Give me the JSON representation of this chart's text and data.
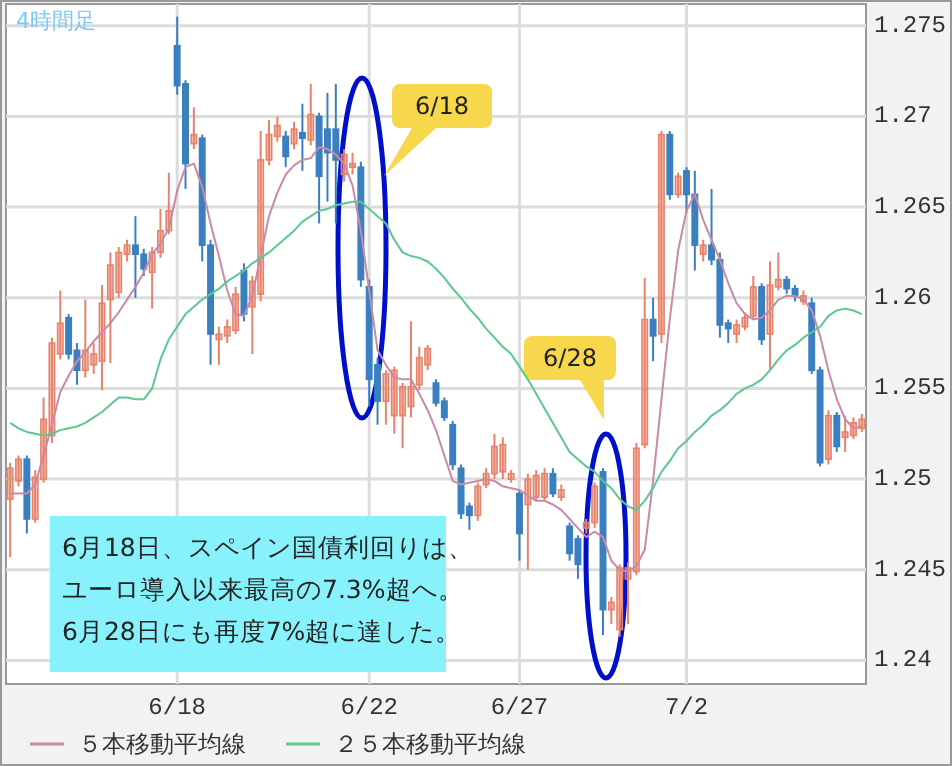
{
  "chart_data": {
    "type": "candlestick",
    "subtitle": "4時間足",
    "categories": [
      null,
      null,
      null,
      null,
      null,
      null,
      null,
      null,
      null,
      null,
      null,
      null,
      null,
      null,
      null,
      null,
      null,
      null,
      null,
      null,
      "6/18",
      null,
      null,
      null,
      null,
      null,
      null,
      null,
      null,
      null,
      null,
      null,
      null,
      null,
      null,
      null,
      null,
      null,
      null,
      null,
      null,
      null,
      null,
      "6/22",
      null,
      null,
      null,
      null,
      null,
      null,
      null,
      null,
      null,
      null,
      null,
      null,
      null,
      null,
      null,
      null,
      null,
      "6/27",
      null,
      null,
      null,
      null,
      null,
      null,
      null,
      null,
      null,
      null,
      null,
      null,
      null,
      null,
      null,
      null,
      null,
      null,
      null,
      "7/2",
      null,
      null,
      null,
      null,
      null,
      null,
      null,
      null,
      null,
      null,
      null,
      null,
      null,
      null,
      null,
      null,
      null,
      null,
      null,
      null,
      null
    ],
    "ohlc": [
      [
        1.2489,
        1.2509,
        1.2457,
        1.2506
      ],
      [
        1.2499,
        1.2513,
        1.2496,
        1.2511
      ],
      [
        1.2511,
        1.2513,
        1.247,
        1.2478
      ],
      [
        1.2478,
        1.2505,
        1.2476,
        1.2501
      ],
      [
        1.25,
        1.2545,
        1.2498,
        1.2533
      ],
      [
        1.2524,
        1.2578,
        1.252,
        1.2575
      ],
      [
        1.2569,
        1.2604,
        1.2566,
        1.2586
      ],
      [
        1.2589,
        1.2591,
        1.2566,
        1.2569
      ],
      [
        1.2571,
        1.2575,
        1.2552,
        1.256
      ],
      [
        1.256,
        1.2599,
        1.2556,
        1.2571
      ],
      [
        1.2563,
        1.2575,
        1.2558,
        1.2569
      ],
      [
        1.2565,
        1.2607,
        1.2549,
        1.2597
      ],
      [
        1.2599,
        1.2625,
        1.2564,
        1.2618
      ],
      [
        1.2603,
        1.2628,
        1.26,
        1.2625
      ],
      [
        1.2624,
        1.2632,
        1.262,
        1.2629
      ],
      [
        1.2629,
        1.2645,
        1.26,
        1.2624
      ],
      [
        1.2624,
        1.2627,
        1.2612,
        1.2616
      ],
      [
        1.2614,
        1.2628,
        1.2594,
        1.2625
      ],
      [
        1.2625,
        1.2649,
        1.2622,
        1.2637
      ],
      [
        1.2637,
        1.2669,
        1.2635,
        1.2648
      ],
      [
        1.2739,
        1.2755,
        1.2712,
        1.2717
      ],
      [
        1.2718,
        1.272,
        1.266,
        1.2674
      ],
      [
        1.2685,
        1.2705,
        1.2682,
        1.269
      ],
      [
        1.2688,
        1.269,
        1.262,
        1.2629
      ],
      [
        1.2629,
        1.2632,
        1.2563,
        1.258
      ],
      [
        1.2577,
        1.2584,
        1.2563,
        1.258
      ],
      [
        1.2579,
        1.2588,
        1.2575,
        1.2584
      ],
      [
        1.2582,
        1.2606,
        1.258,
        1.2602
      ],
      [
        1.2615,
        1.2619,
        1.2587,
        1.2591
      ],
      [
        1.2595,
        1.2612,
        1.2569,
        1.2609
      ],
      [
        1.2602,
        1.2692,
        1.2598,
        1.2676
      ],
      [
        1.2676,
        1.2698,
        1.2673,
        1.269
      ],
      [
        1.2689,
        1.27,
        1.2686,
        1.2695
      ],
      [
        1.2689,
        1.2692,
        1.2672,
        1.2678
      ],
      [
        1.2685,
        1.2697,
        1.2682,
        1.2693
      ],
      [
        1.2691,
        1.2707,
        1.267,
        1.2688
      ],
      [
        1.2687,
        1.2718,
        1.2684,
        1.2701
      ],
      [
        1.27,
        1.2702,
        1.2641,
        1.2667
      ],
      [
        1.2693,
        1.2713,
        1.2653,
        1.268
      ],
      [
        1.2693,
        1.2718,
        1.2641,
        1.2676
      ],
      [
        1.2668,
        1.2682,
        1.2664,
        1.2679
      ],
      [
        1.2672,
        1.268,
        1.2668,
        1.2674
      ],
      [
        1.2672,
        1.2675,
        1.2606,
        1.261
      ],
      [
        1.2606,
        1.261,
        1.254,
        1.2555
      ],
      [
        1.2563,
        1.2567,
        1.253,
        1.2543
      ],
      [
        1.2543,
        1.256,
        1.253,
        1.2558
      ],
      [
        1.2535,
        1.2562,
        1.2525,
        1.256
      ],
      [
        1.2535,
        1.2553,
        1.2517,
        1.2551
      ],
      [
        1.254,
        1.2587,
        1.2534,
        1.2551
      ],
      [
        1.2552,
        1.2573,
        1.2549,
        1.2567
      ],
      [
        1.2563,
        1.2574,
        1.256,
        1.2572
      ],
      [
        1.2553,
        1.2555,
        1.254,
        1.2542
      ],
      [
        1.2543,
        1.2545,
        1.2532,
        1.2534
      ],
      [
        1.253,
        1.2532,
        1.2505,
        1.2508
      ],
      [
        1.2506,
        1.2508,
        1.2478,
        1.2481
      ],
      [
        1.2485,
        1.2487,
        1.2472,
        1.248
      ],
      [
        1.248,
        1.2498,
        1.2477,
        1.2496
      ],
      [
        1.2497,
        1.2506,
        1.2495,
        1.2503
      ],
      [
        1.2503,
        1.2525,
        1.25,
        1.2518
      ],
      [
        1.2504,
        1.2523,
        1.25,
        1.2519
      ],
      [
        1.25,
        1.2505,
        1.2498,
        1.2503
      ],
      [
        1.2492,
        1.2494,
        1.2455,
        1.247
      ],
      [
        1.2486,
        1.2503,
        1.245,
        1.25
      ],
      [
        1.249,
        1.2505,
        1.2488,
        1.2502
      ],
      [
        1.249,
        1.2506,
        1.2488,
        1.2503
      ],
      [
        1.2503,
        1.2506,
        1.249,
        1.2492
      ],
      [
        1.249,
        1.2497,
        1.2488,
        1.2494
      ],
      [
        1.2474,
        1.2476,
        1.2455,
        1.2459
      ],
      [
        1.2467,
        1.2469,
        1.2445,
        1.2453
      ],
      [
        1.2473,
        1.2478,
        1.247,
        1.2476
      ],
      [
        1.2476,
        1.2498,
        1.2473,
        1.2496
      ],
      [
        1.2504,
        1.2506,
        1.2414,
        1.2428
      ],
      [
        1.2428,
        1.2435,
        1.242,
        1.2432
      ],
      [
        1.2417,
        1.2453,
        1.2413,
        1.2451
      ],
      [
        1.2445,
        1.2454,
        1.242,
        1.2451
      ],
      [
        1.2449,
        1.252,
        1.2447,
        1.2517
      ],
      [
        1.2519,
        1.2611,
        1.2517,
        1.2588
      ],
      [
        1.2588,
        1.26,
        1.2565,
        1.2579
      ],
      [
        1.258,
        1.2692,
        1.2575,
        1.269
      ],
      [
        1.269,
        1.2692,
        1.2654,
        1.2657
      ],
      [
        1.2657,
        1.2669,
        1.2655,
        1.2667
      ],
      [
        1.267,
        1.2672,
        1.2647,
        1.2657
      ],
      [
        1.2657,
        1.267,
        1.2615,
        1.2629
      ],
      [
        1.2624,
        1.2632,
        1.262,
        1.2629
      ],
      [
        1.2629,
        1.266,
        1.2618,
        1.2621
      ],
      [
        1.2621,
        1.2625,
        1.2578,
        1.2585
      ],
      [
        1.2586,
        1.2588,
        1.2575,
        1.2583
      ],
      [
        1.258,
        1.2588,
        1.2575,
        1.2585
      ],
      [
        1.2584,
        1.2592,
        1.2582,
        1.2589
      ],
      [
        1.259,
        1.2612,
        1.2588,
        1.2606
      ],
      [
        1.2606,
        1.2608,
        1.2574,
        1.2577
      ],
      [
        1.258,
        1.262,
        1.256,
        1.2607
      ],
      [
        1.2606,
        1.2625,
        1.2604,
        1.261
      ],
      [
        1.261,
        1.2612,
        1.2602,
        1.2605
      ],
      [
        1.2605,
        1.2607,
        1.2598,
        1.2601
      ],
      [
        1.2598,
        1.2604,
        1.2596,
        1.2601
      ],
      [
        1.2597,
        1.26,
        1.2558,
        1.256
      ],
      [
        1.256,
        1.2562,
        1.2507,
        1.2509
      ],
      [
        1.2511,
        1.2538,
        1.2508,
        1.2535
      ],
      [
        1.2535,
        1.2537,
        1.2515,
        1.2518
      ],
      [
        1.2523,
        1.2535,
        1.2515,
        1.2526
      ],
      [
        1.2524,
        1.2534,
        1.2522,
        1.2531
      ],
      [
        1.2528,
        1.2536,
        1.2526,
        1.2533
      ]
    ],
    "colors": [
      "#e8826a",
      "#e8826a",
      "#3a7fc0",
      "#e8826a",
      "#e8826a",
      "#e8826a",
      "#e8826a",
      "#3a7fc0",
      "#3a7fc0",
      "#e8826a",
      "#e8826a",
      "#e8826a",
      "#e8826a",
      "#e8826a",
      "#e8826a",
      "#3a7fc0",
      "#3a7fc0",
      "#e8826a",
      "#e8826a",
      "#e8826a",
      "#3a7fc0",
      "#3a7fc0",
      "#e8826a",
      "#3a7fc0",
      "#3a7fc0",
      "#e8826a",
      "#e8826a",
      "#e8826a",
      "#3a7fc0",
      "#e8826a",
      "#e8826a",
      "#e8826a",
      "#e8826a",
      "#3a7fc0",
      "#e8826a",
      "#3a7fc0",
      "#e8826a",
      "#3a7fc0",
      "#3a7fc0",
      "#3a7fc0",
      "#e8826a",
      "#e8826a",
      "#3a7fc0",
      "#3a7fc0",
      "#3a7fc0",
      "#e8826a",
      "#e8826a",
      "#e8826a",
      "#e8826a",
      "#e8826a",
      "#e8826a",
      "#3a7fc0",
      "#3a7fc0",
      "#3a7fc0",
      "#3a7fc0",
      "#3a7fc0",
      "#e8826a",
      "#e8826a",
      "#e8826a",
      "#e8826a",
      "#e8826a",
      "#3a7fc0",
      "#e8826a",
      "#e8826a",
      "#e8826a",
      "#3a7fc0",
      "#e8826a",
      "#3a7fc0",
      "#3a7fc0",
      "#e8826a",
      "#e8826a",
      "#3a7fc0",
      "#e8826a",
      "#e8826a",
      "#e8826a",
      "#e8826a",
      "#e8826a",
      "#3a7fc0",
      "#e8826a",
      "#3a7fc0",
      "#e8826a",
      "#3a7fc0",
      "#3a7fc0",
      "#e8826a",
      "#3a7fc0",
      "#3a7fc0",
      "#3a7fc0",
      "#e8826a",
      "#e8826a",
      "#e8826a",
      "#3a7fc0",
      "#e8826a",
      "#e8826a",
      "#3a7fc0",
      "#3a7fc0",
      "#e8826a",
      "#3a7fc0",
      "#3a7fc0",
      "#e8826a",
      "#3a7fc0",
      "#e8826a",
      "#e8826a",
      "#e8826a"
    ],
    "series": [
      {
        "name": "５本移動平均線",
        "type": "line",
        "color": "#c98aa8",
        "values": [
          1.2492,
          1.2492,
          1.2492,
          1.2497,
          1.2513,
          1.253,
          1.2548,
          1.2557,
          1.2565,
          1.257,
          1.2576,
          1.2581,
          1.2586,
          1.2592,
          1.2599,
          1.2606,
          1.2614,
          1.2624,
          1.263,
          1.2638,
          1.2659,
          1.2672,
          1.2674,
          1.2661,
          1.2641,
          1.2623,
          1.2604,
          1.2591,
          1.259,
          1.2601,
          1.2623,
          1.2645,
          1.2658,
          1.2668,
          1.2673,
          1.2676,
          1.2677,
          1.2683,
          1.2682,
          1.2679,
          1.2674,
          1.2662,
          1.2637,
          1.2604,
          1.2571,
          1.2563,
          1.2556,
          1.2555,
          1.2555,
          1.2547,
          1.2538,
          1.2527,
          1.2513,
          1.2499,
          1.2497,
          1.2498,
          1.2499,
          1.25,
          1.2499,
          1.2496,
          1.2495,
          1.2494,
          1.2491,
          1.2488,
          1.2488,
          1.2486,
          1.2483,
          1.2478,
          1.2473,
          1.2468,
          1.2471,
          1.2468,
          1.2455,
          1.245,
          1.2449,
          1.2452,
          1.2461,
          1.2499,
          1.2544,
          1.2588,
          1.2626,
          1.2648,
          1.2657,
          1.2643,
          1.2632,
          1.2621,
          1.2608,
          1.2597,
          1.2591,
          1.2588,
          1.2589,
          1.2593,
          1.2599,
          1.2601,
          1.2601,
          1.2599,
          1.2593,
          1.2579,
          1.256,
          1.2544,
          1.2533,
          1.2528,
          1.2529
        ]
      },
      {
        "name": "２５本移動平均線",
        "type": "line",
        "color": "#5cc88e",
        "values": [
          1.2531,
          1.2528,
          1.2526,
          1.2525,
          1.2524,
          1.2525,
          1.2527,
          1.2528,
          1.2529,
          1.2531,
          1.2534,
          1.2537,
          1.2541,
          1.2545,
          1.2545,
          1.2544,
          1.2544,
          1.255,
          1.2566,
          1.2577,
          1.2584,
          1.2591,
          1.2595,
          1.2599,
          1.2602,
          1.2605,
          1.2609,
          1.2612,
          1.2615,
          1.2619,
          1.2622,
          1.2625,
          1.2629,
          1.2633,
          1.2637,
          1.2642,
          1.2645,
          1.2648,
          1.2649,
          1.2651,
          1.2652,
          1.2653,
          1.2653,
          1.2649,
          1.2645,
          1.2641,
          1.2632,
          1.2625,
          1.2623,
          1.2622,
          1.262,
          1.2616,
          1.2611,
          1.2605,
          1.26,
          1.2594,
          1.2589,
          1.2583,
          1.2578,
          1.2573,
          1.2569,
          1.2562,
          1.2555,
          1.2547,
          1.2539,
          1.2531,
          1.2523,
          1.2515,
          1.2511,
          1.2507,
          1.2504,
          1.2499,
          1.2495,
          1.2489,
          1.2485,
          1.2483,
          1.2488,
          1.2495,
          1.2504,
          1.251,
          1.2517,
          1.2521,
          1.2526,
          1.253,
          1.2535,
          1.2538,
          1.2542,
          1.2547,
          1.255,
          1.2552,
          1.2555,
          1.256,
          1.2566,
          1.2571,
          1.2574,
          1.2578,
          1.2581,
          1.2584,
          1.259,
          1.2593,
          1.2594,
          1.2593,
          1.2591
        ]
      }
    ],
    "ylim": [
      1.2387,
      1.2762
    ],
    "yticks": [
      1.24,
      1.245,
      1.25,
      1.255,
      1.26,
      1.265,
      1.27,
      1.275
    ],
    "grid": true,
    "legend": "bottom",
    "annotations": [
      "6/18",
      "6/28",
      "6月18日、スペイン国債利回りは、",
      "ユーロ導入以来最高の7.3%超へ。",
      "6月28日にも再度7%超に達した。"
    ]
  }
}
